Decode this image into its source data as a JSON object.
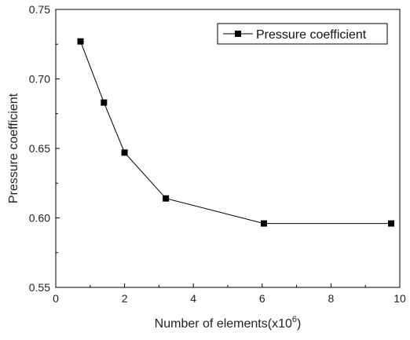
{
  "chart_data": {
    "type": "line",
    "title": "",
    "xlabel": "Number of elements(x10",
    "xlabel_sup": "6",
    "xlabel_close": ")",
    "ylabel": "Pressure coefficient",
    "xlim": [
      0,
      10
    ],
    "ylim": [
      0.55,
      0.75
    ],
    "x_ticks": [
      0,
      2,
      4,
      6,
      8,
      10
    ],
    "x_tick_labels": [
      "0",
      "2",
      "4",
      "6",
      "8",
      "10"
    ],
    "y_ticks": [
      0.55,
      0.6,
      0.65,
      0.7,
      0.75
    ],
    "y_tick_labels": [
      "0.55",
      "0.60",
      "0.65",
      "0.70",
      "0.75"
    ],
    "grid": false,
    "legend_position": "top-right",
    "series": [
      {
        "name": "Pressure coefficient",
        "marker": "square",
        "color": "#000000",
        "x": [
          0.72,
          1.4,
          2.0,
          3.2,
          6.05,
          9.75
        ],
        "y": [
          0.727,
          0.683,
          0.647,
          0.614,
          0.596,
          0.596
        ]
      }
    ]
  }
}
